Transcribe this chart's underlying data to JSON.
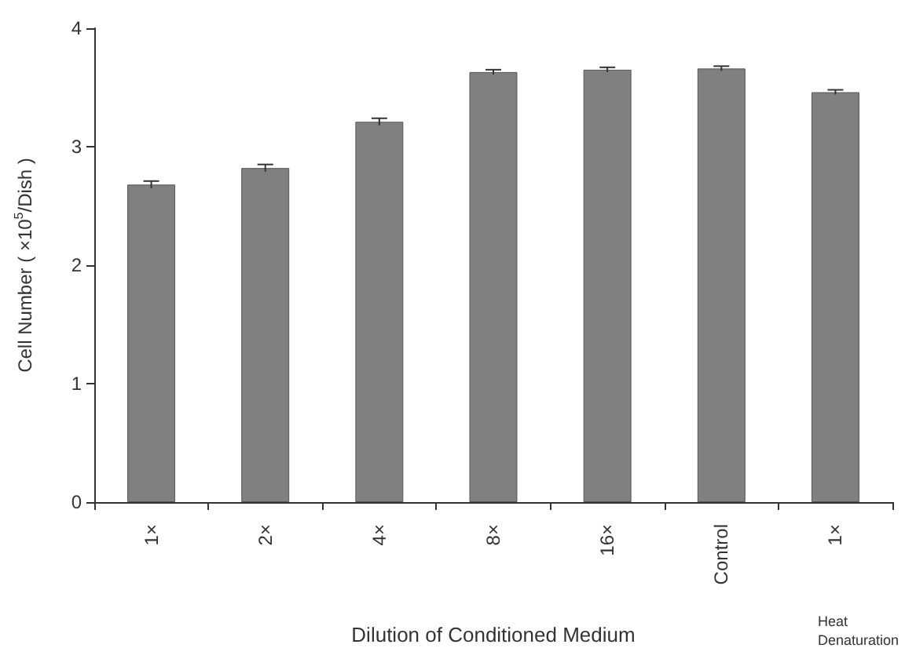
{
  "chart_data": {
    "type": "bar",
    "xlabel": "Dilution of Conditioned Medium",
    "ylabel": "Cell Number ( ×10$^{5}$/Dish )",
    "categories": [
      "1×",
      "2×",
      "4×",
      "8×",
      "16×",
      "Control",
      "1×"
    ],
    "values": [
      2.68,
      2.82,
      3.21,
      3.63,
      3.65,
      3.66,
      3.46
    ],
    "errors": [
      0.03,
      0.03,
      0.03,
      0.02,
      0.02,
      0.02,
      0.02
    ],
    "color": "#808080",
    "ylim": [
      0,
      4
    ],
    "yticks": [
      0,
      1,
      2,
      3,
      4
    ],
    "grid": false,
    "annotations": [
      "Heat\nDenaturation"
    ]
  }
}
